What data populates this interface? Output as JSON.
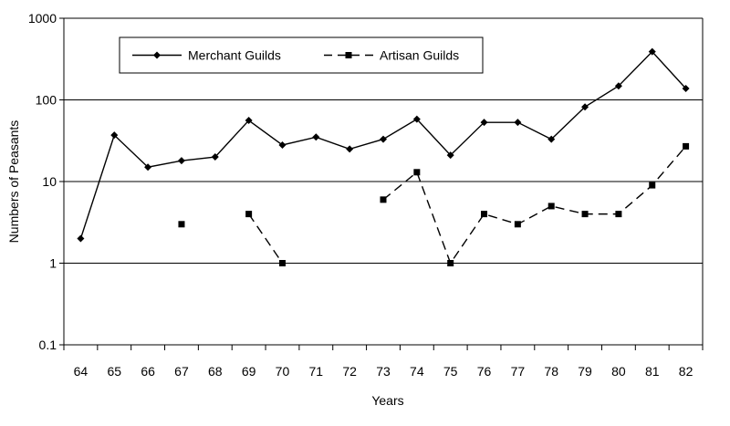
{
  "chart_data": {
    "type": "line",
    "title": "",
    "xlabel": "Years",
    "ylabel": "Numbers of Peasants",
    "y_scale": "log",
    "ylim": [
      0.1,
      1000
    ],
    "y_ticks": [
      "1000",
      "100",
      "10",
      "1",
      "0.1"
    ],
    "grid": "horizontal",
    "legend_position": "top-left-inside",
    "categories": [
      "64",
      "65",
      "66",
      "67",
      "68",
      "69",
      "70",
      "71",
      "72",
      "73",
      "74",
      "75",
      "76",
      "77",
      "78",
      "79",
      "80",
      "81",
      "82"
    ],
    "series": [
      {
        "name": "Merchant Guilds",
        "style": "solid",
        "marker": "diamond",
        "color": "#000000",
        "values": [
          2,
          37,
          15,
          18,
          20,
          56,
          28,
          35,
          25,
          33,
          58,
          21,
          53,
          53,
          33,
          82,
          148,
          390,
          138
        ]
      },
      {
        "name": "Artisan Guilds",
        "style": "dashed",
        "marker": "square",
        "color": "#000000",
        "values": [
          null,
          null,
          null,
          3,
          null,
          4,
          1,
          null,
          null,
          6,
          13,
          1,
          4,
          3,
          5,
          4,
          4,
          9,
          27
        ]
      }
    ]
  }
}
